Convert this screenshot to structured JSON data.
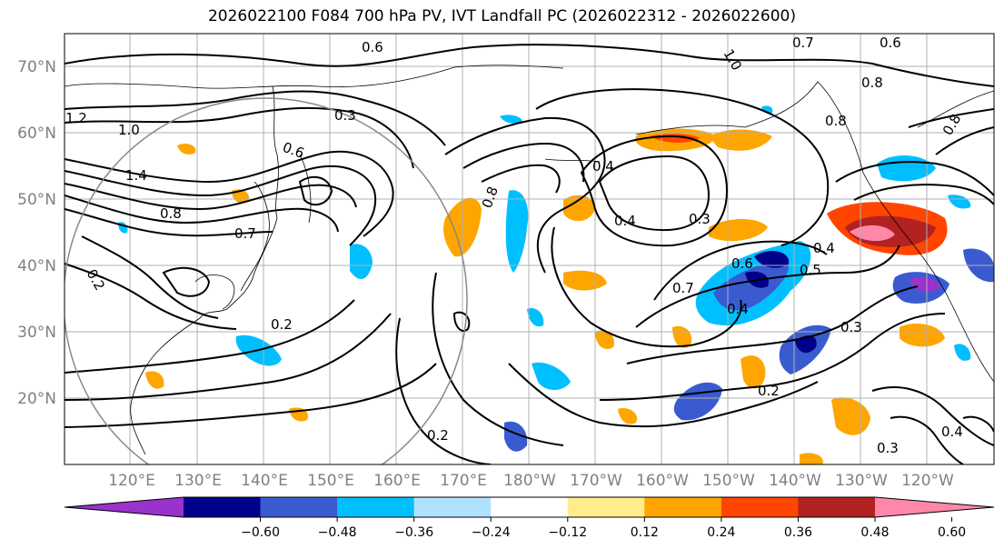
{
  "title": "2026022100 F084 700 hPa PV, IVT Landfall PC (2026022312 - 2026022600)",
  "lat_labels": [
    "70°N",
    "60°N",
    "50°N",
    "40°N",
    "30°N",
    "20°N"
  ],
  "lon_labels": [
    "120°E",
    "130°E",
    "140°E",
    "150°E",
    "160°E",
    "170°E",
    "180°W",
    "170°W",
    "160°W",
    "150°W",
    "140°W",
    "130°W",
    "120°W"
  ],
  "contour_labels": [
    "0.6",
    "0.7",
    "0.6",
    "1.0",
    "0.8",
    "1.2",
    "1.0",
    "0.3",
    "0.6",
    "1.4",
    "0.8",
    "0.7",
    "0.2",
    "0.4",
    "0.4",
    "0.8",
    "0.3",
    "0.6",
    "0.4",
    "0.5",
    "0.4",
    "0.2",
    "0.3",
    "0.2",
    "0.3",
    "0.4",
    "0.2",
    "0.8",
    "0.8",
    "0.7"
  ],
  "colorbar": {
    "colors": [
      "#9933cc",
      "#00008b",
      "#3a5bd0",
      "#00bfff",
      "#b0e2ff",
      "#ffffff",
      "#ffec8b",
      "#ffa500",
      "#ff4500",
      "#b22222",
      "#ff88aa"
    ],
    "ticks": [
      "−0.60",
      "−0.48",
      "−0.36",
      "−0.24",
      "−0.12",
      "0.12",
      "0.24",
      "0.36",
      "0.48",
      "0.60"
    ]
  },
  "colors": {
    "contour": "#000000",
    "grid": "#b0b0b0",
    "coast": "#000000",
    "circle": "#888888"
  }
}
